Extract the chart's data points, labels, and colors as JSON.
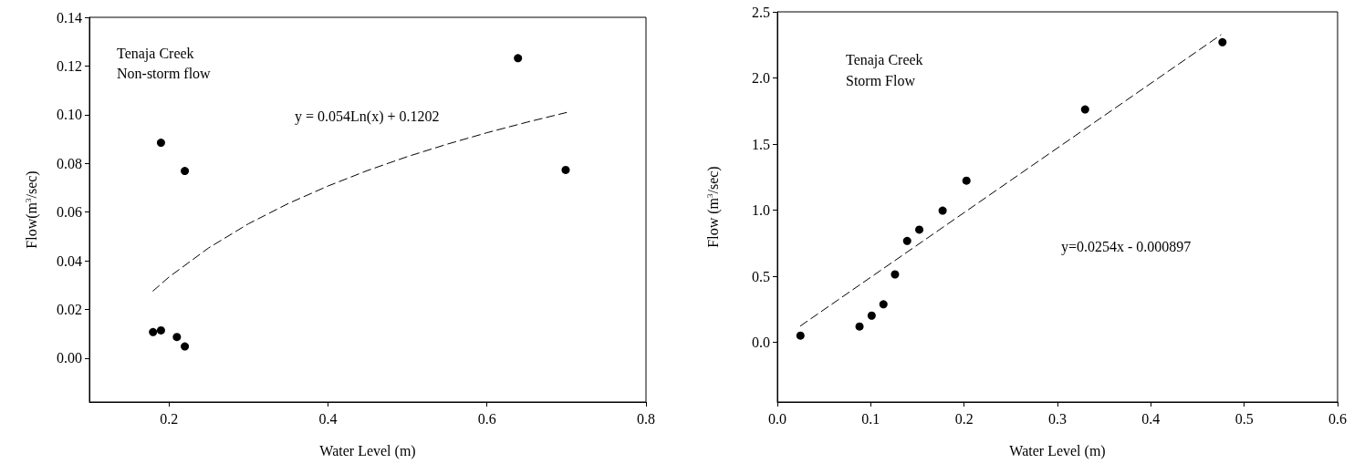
{
  "chart_data": [
    {
      "type": "scatter",
      "xlabel": "Water Level (m)",
      "ylabel": "Flow(m$^{3}$/sec)",
      "annotations": [
        "Tenaja Creek",
        "Non-storm flow",
        "y = 0.054Ln(x) + 0.1202"
      ],
      "xlim": [
        0.1,
        0.8
      ],
      "xticks": [
        0.2,
        0.4,
        0.6,
        0.8
      ],
      "ylim": [
        -0.018,
        0.14
      ],
      "yticks": [
        {
          "value": 0,
          "label": "0.00"
        },
        0.02,
        0.04,
        0.06,
        0.08,
        {
          "value": 0.1,
          "label": "0.10"
        },
        0.12,
        0.14
      ],
      "grid": false,
      "marker": "circle",
      "series": [
        {
          "color": "#000000",
          "x": [
            0.18,
            0.19,
            0.21,
            0.22,
            0.19,
            0.22,
            0.639,
            0.699
          ],
          "values": [
            0.0107,
            0.0114,
            0.0087,
            0.0048,
            0.0885,
            0.0769,
            0.1232,
            0.0773
          ]
        },
        {
          "type": "line",
          "marker": "none",
          "line_style": "dashed",
          "color": "#000000",
          "x": [
            0.18,
            0.2,
            0.25,
            0.3,
            0.35,
            0.4,
            0.45,
            0.5,
            0.55,
            0.6,
            0.65,
            0.7
          ],
          "values": [
            0.0276,
            0.0333,
            0.0453,
            0.0552,
            0.0635,
            0.0707,
            0.0771,
            0.0828,
            0.0879,
            0.0926,
            0.0969,
            0.1009
          ]
        }
      ]
    },
    {
      "type": "scatter",
      "xlabel": "Water Level (m)",
      "ylabel": "Flow (m$^{3}$/sec)",
      "annotations": [
        "Tenaja Creek",
        "Storm Flow",
        "y=0.0254x - 0.000897"
      ],
      "xlim": [
        0,
        0.6
      ],
      "xticks": [
        {
          "value": 0,
          "label": "0.0"
        },
        0.1,
        0.2,
        0.3,
        0.4,
        0.5,
        0.6
      ],
      "ylim": [
        -0.45,
        2.5
      ],
      "yticks": [
        {
          "value": 0,
          "label": "0.0"
        },
        0.5,
        {
          "value": 1,
          "label": "1.0"
        },
        1.5,
        {
          "value": 2,
          "label": "2.0"
        },
        2.5
      ],
      "grid": false,
      "marker": "circle",
      "series": [
        {
          "color": "#000000",
          "x": [
            0.0247,
            0.088,
            0.101,
            0.1136,
            0.126,
            0.139,
            0.152,
            0.177,
            0.2025,
            0.3296,
            0.4767
          ],
          "values": [
            0.052,
            0.121,
            0.203,
            0.289,
            0.515,
            0.768,
            0.853,
            0.997,
            1.224,
            1.762,
            2.27
          ]
        },
        {
          "type": "line",
          "marker": "none",
          "line_style": "dashed",
          "color": "#000000",
          "x": [
            0.0247,
            0.475
          ],
          "values": [
            0.125,
            2.326
          ]
        }
      ]
    }
  ]
}
